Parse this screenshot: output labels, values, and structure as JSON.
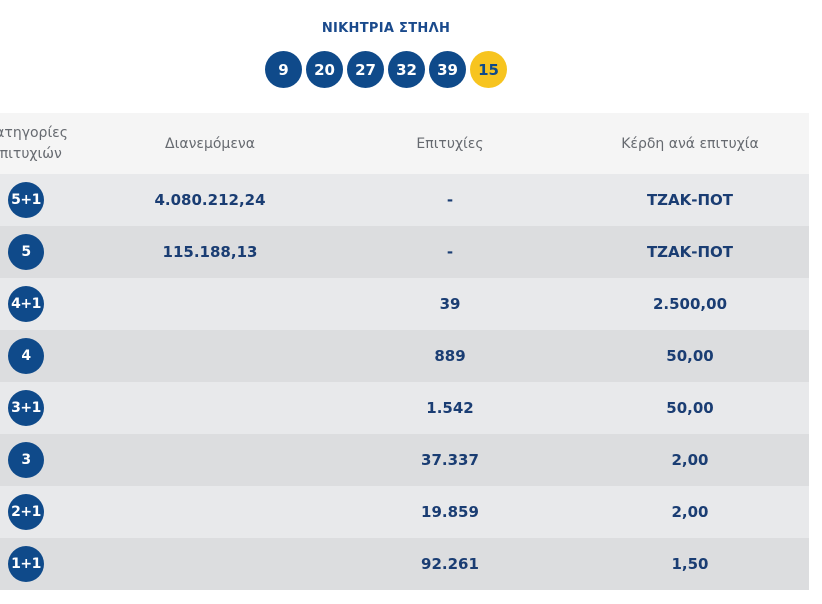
{
  "winning_column": {
    "title": "ΝΙΚΗΤΡΙΑ ΣΤΗΛΗ",
    "numbers": [
      "9",
      "20",
      "27",
      "32",
      "39"
    ],
    "joker": "15"
  },
  "table": {
    "headers": {
      "category_line1": "Κατηγορίες",
      "category_line2": "επιτυχιών",
      "distributed": "Διανεμόμενα",
      "winners": "Επιτυχίες",
      "prize": "Κέρδη ανά επιτυχία"
    },
    "rows": [
      {
        "category": "5+1",
        "distributed": "4.080.212,24",
        "winners": "-",
        "prize": "ΤΖΑΚ-ΠΟΤ"
      },
      {
        "category": "5",
        "distributed": "115.188,13",
        "winners": "-",
        "prize": "ΤΖΑΚ-ΠΟΤ"
      },
      {
        "category": "4+1",
        "distributed": "",
        "winners": "39",
        "prize": "2.500,00"
      },
      {
        "category": "4",
        "distributed": "",
        "winners": "889",
        "prize": "50,00"
      },
      {
        "category": "3+1",
        "distributed": "",
        "winners": "1.542",
        "prize": "50,00"
      },
      {
        "category": "3",
        "distributed": "",
        "winners": "37.337",
        "prize": "2,00"
      },
      {
        "category": "2+1",
        "distributed": "",
        "winners": "19.859",
        "prize": "2,00"
      },
      {
        "category": "1+1",
        "distributed": "",
        "winners": "92.261",
        "prize": "1,50"
      }
    ]
  }
}
